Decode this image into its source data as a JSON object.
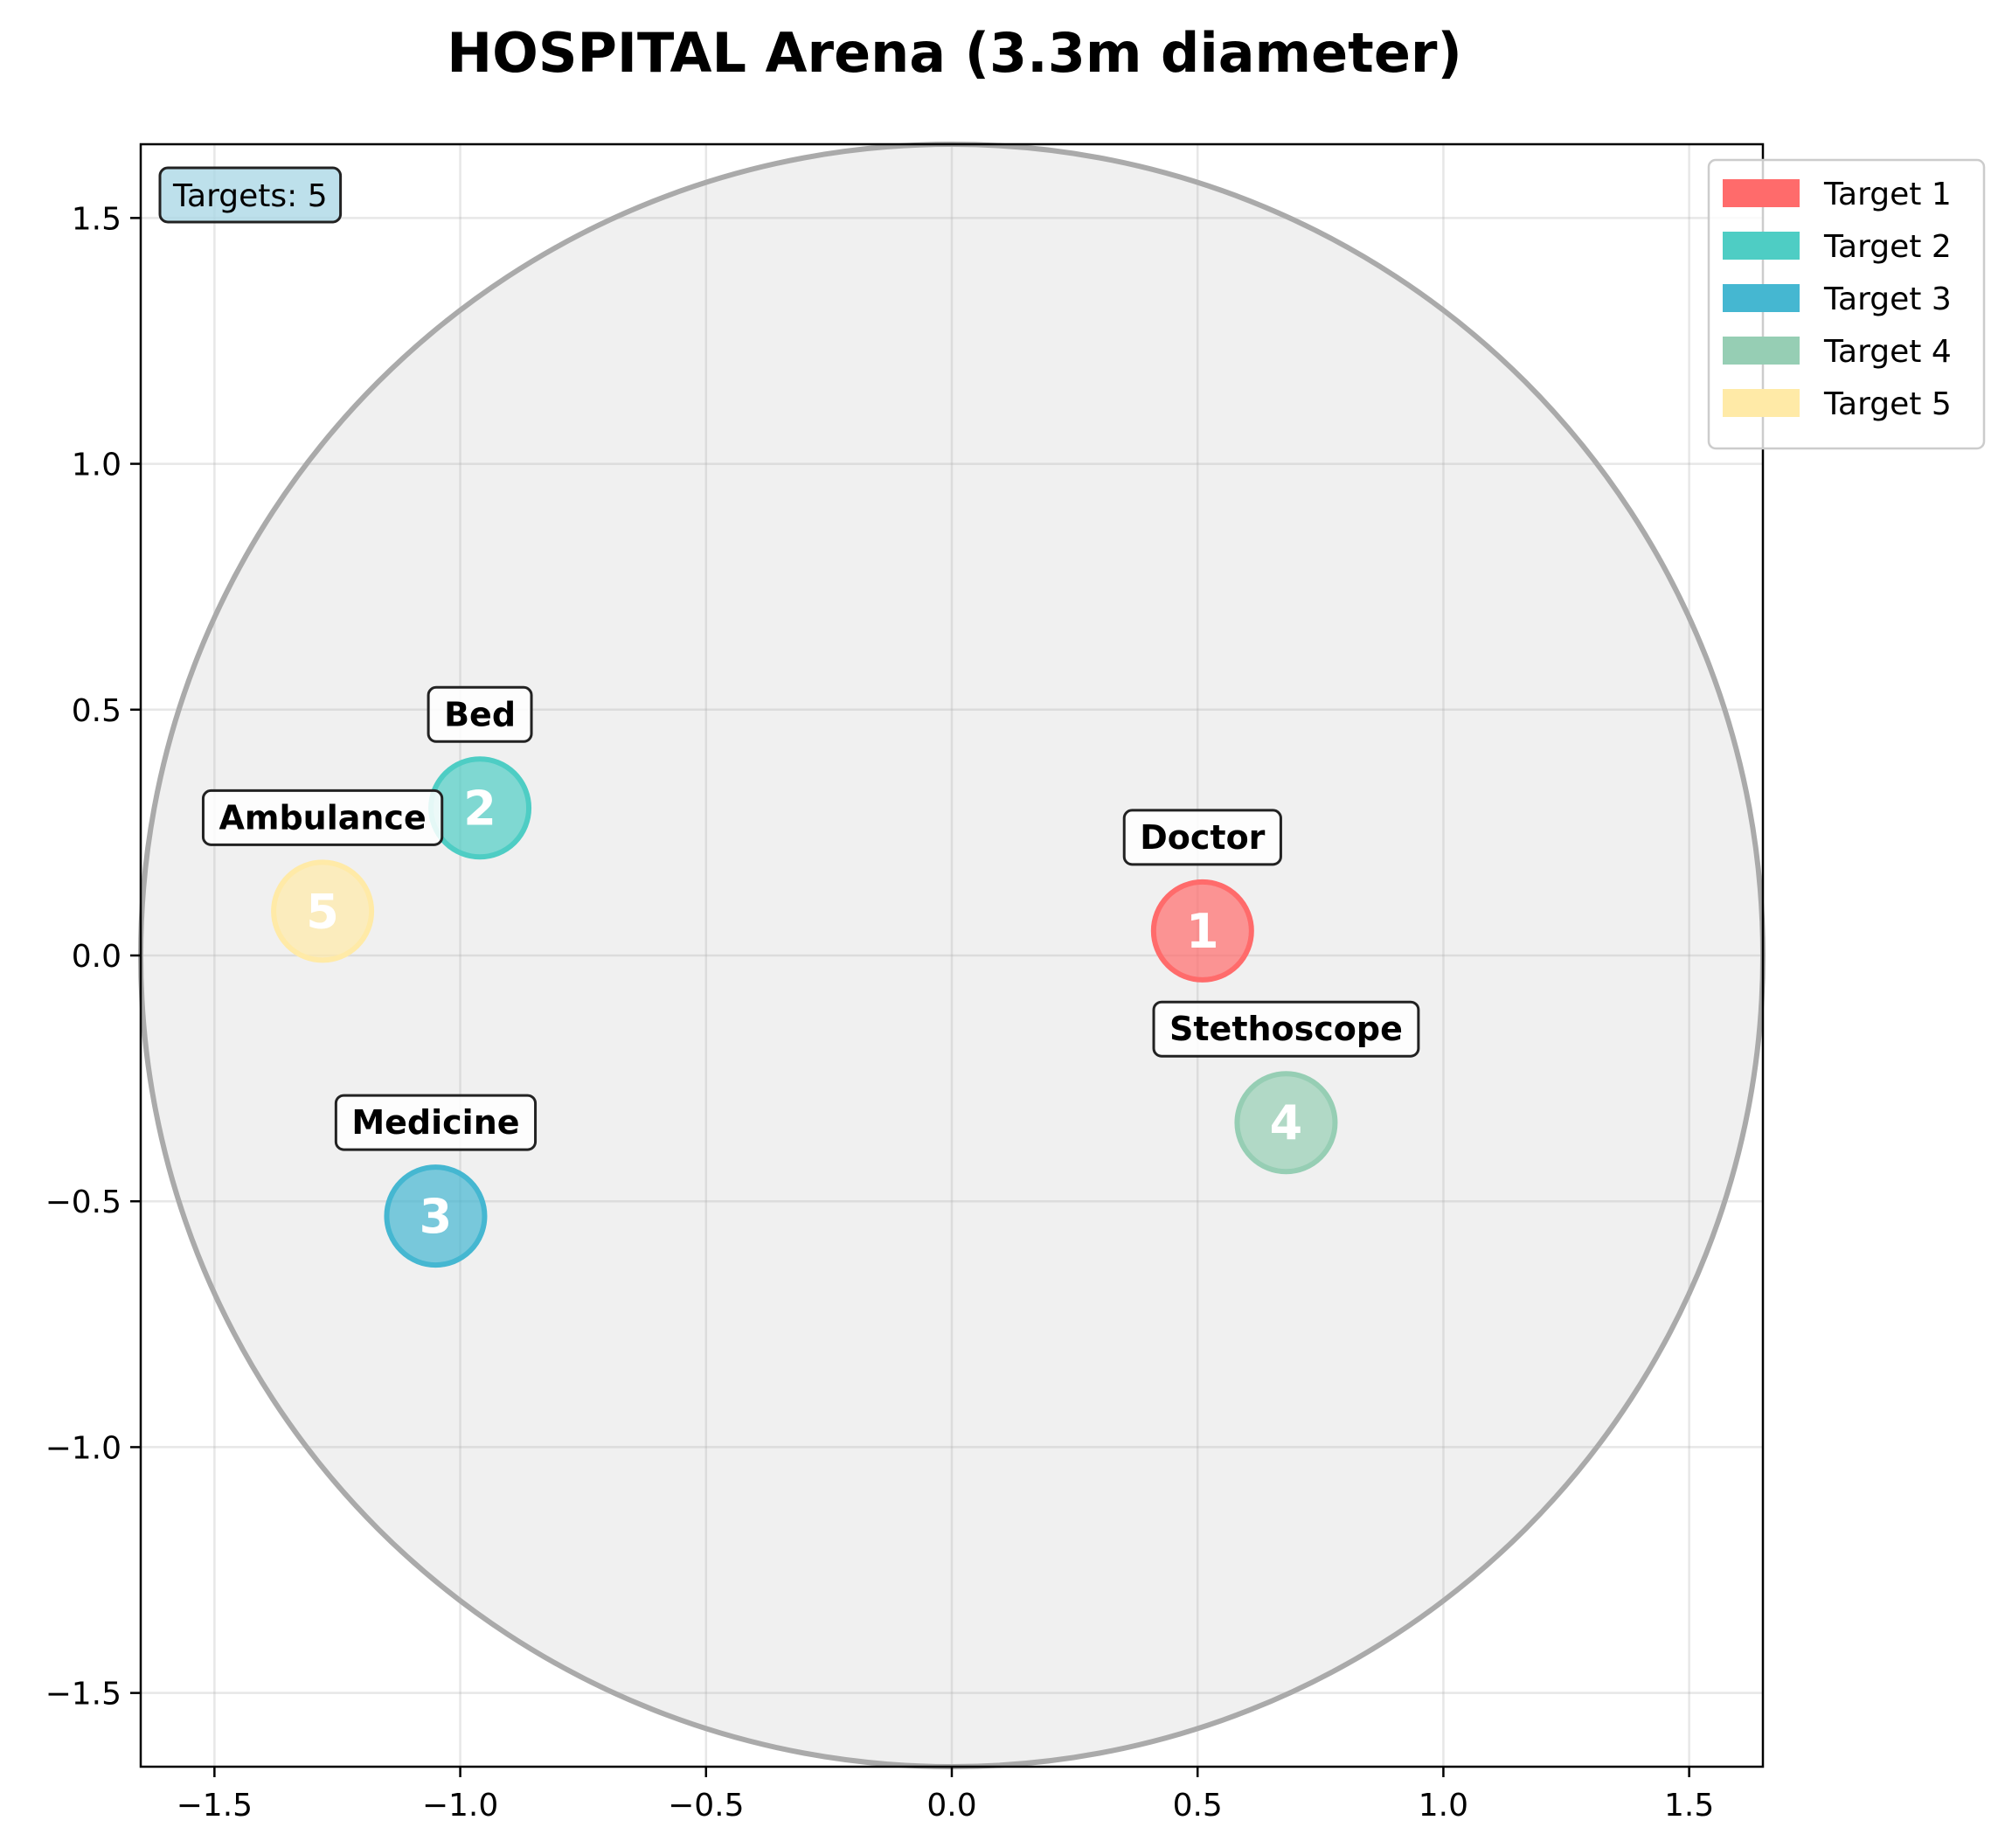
{
  "chart_data": {
    "type": "scatter",
    "title": "HOSPITAL Arena (3.3m diameter)",
    "xlabel": "",
    "ylabel": "",
    "xlim": [
      -1.65,
      1.65
    ],
    "ylim": [
      -1.65,
      1.65
    ],
    "xticks": [
      -1.5,
      -1.0,
      -0.5,
      0.0,
      0.5,
      1.0,
      1.5
    ],
    "yticks": [
      -1.5,
      -1.0,
      -0.5,
      0.0,
      0.5,
      1.0,
      1.5
    ],
    "xtick_labels": [
      "−1.5",
      "−1.0",
      "−0.5",
      "0.0",
      "0.5",
      "1.0",
      "1.5"
    ],
    "ytick_labels": [
      "−1.5",
      "−1.0",
      "−0.5",
      "0.0",
      "0.5",
      "1.0",
      "1.5"
    ],
    "grid": true,
    "arena": {
      "center": [
        0,
        0
      ],
      "diameter": 3.3,
      "fill": "#f0f0f0",
      "edge": "#aaaaaa"
    },
    "count_label": "Targets: 5",
    "legend_position": "upper-right-outside",
    "points": [
      {
        "id": "1",
        "name": "Target 1",
        "label": "Doctor",
        "x": 0.51,
        "y": 0.05,
        "color": "#FF6B6B"
      },
      {
        "id": "2",
        "name": "Target 2",
        "label": "Bed",
        "x": -0.96,
        "y": 0.3,
        "color": "#4ECDC4"
      },
      {
        "id": "3",
        "name": "Target 3",
        "label": "Medicine",
        "x": -1.05,
        "y": -0.53,
        "color": "#45B7D1"
      },
      {
        "id": "4",
        "name": "Target 4",
        "label": "Stethoscope",
        "x": 0.68,
        "y": -0.34,
        "color": "#96CEB4"
      },
      {
        "id": "5",
        "name": "Target 5",
        "label": "Ambulance",
        "x": -1.28,
        "y": 0.09,
        "color": "#FFEAA7"
      }
    ]
  }
}
